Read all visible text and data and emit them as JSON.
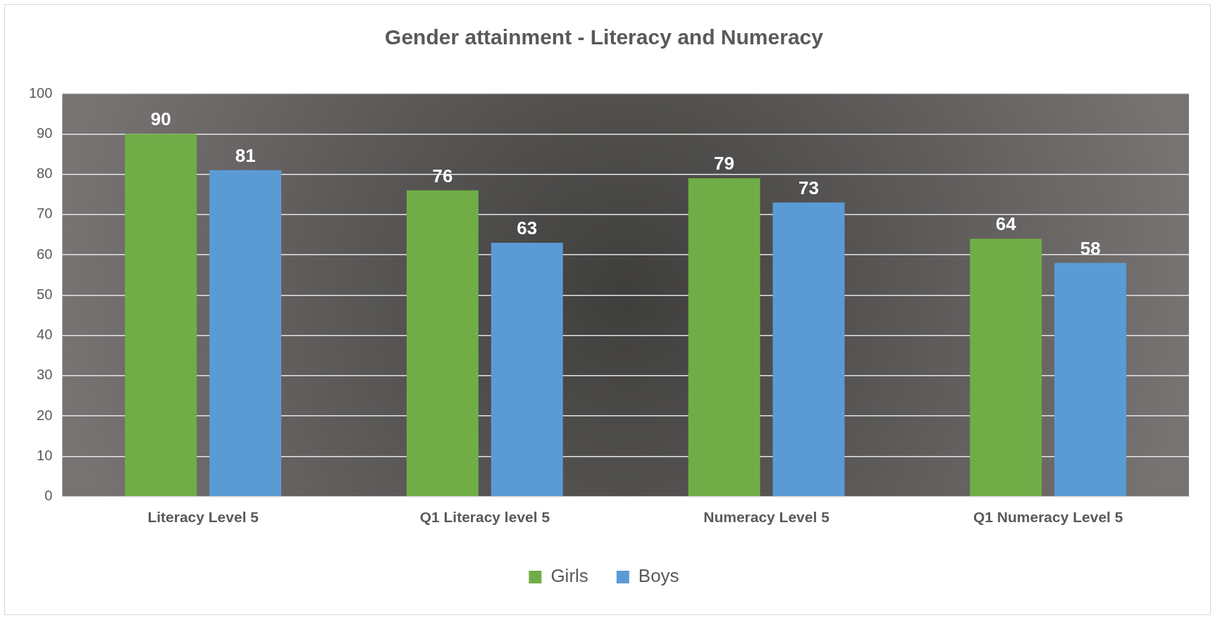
{
  "chart_data": {
    "type": "bar",
    "title": "Gender attainment - Literacy and Numeracy",
    "categories": [
      "Literacy Level 5",
      "Q1 Literacy level 5",
      "Numeracy Level 5",
      "Q1 Numeracy Level 5"
    ],
    "series": [
      {
        "name": "Girls",
        "color": "#70ad47",
        "values": [
          90,
          76,
          79,
          64
        ]
      },
      {
        "name": "Boys",
        "color": "#5b9bd5",
        "values": [
          81,
          63,
          73,
          58
        ]
      }
    ],
    "ylim": [
      0,
      100
    ],
    "yticks": [
      0,
      10,
      20,
      30,
      40,
      50,
      60,
      70,
      80,
      90,
      100
    ],
    "grid": "y",
    "legend": "bottom",
    "data_labels": true
  }
}
